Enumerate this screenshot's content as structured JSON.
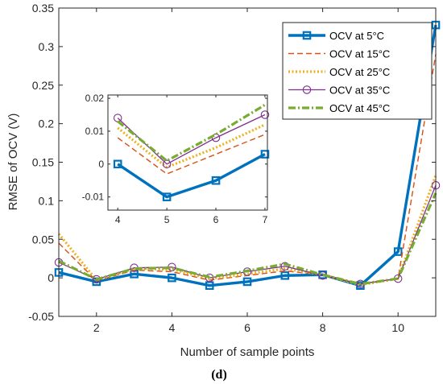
{
  "caption": "(d)",
  "chart_data": {
    "type": "line",
    "xlabel": "Number of sample points",
    "ylabel": "RMSE of OCV (V)",
    "xlim": [
      1,
      11
    ],
    "ylim": [
      -0.05,
      0.35
    ],
    "xticks": [
      2,
      4,
      6,
      8,
      10
    ],
    "yticks": [
      -0.05,
      0,
      0.05,
      0.1,
      0.15,
      0.2,
      0.25,
      0.3,
      0.35
    ],
    "ytick_labels": [
      "-0.05",
      "0",
      "0.05",
      "0.1",
      "0.15",
      "0.2",
      "0.25",
      "0.3",
      "0.35"
    ],
    "grid": false,
    "legend_position": "top-right",
    "x": [
      1,
      2,
      3,
      4,
      5,
      6,
      7,
      8,
      9,
      10,
      11
    ],
    "series": [
      {
        "name": "OCV at 5°C",
        "color": "#0072BD",
        "style": "solid-square",
        "values": [
          0.007,
          -0.005,
          0.005,
          0.0,
          -0.01,
          -0.005,
          0.003,
          0.004,
          -0.01,
          0.034,
          0.328
        ]
      },
      {
        "name": "OCV at 15°C",
        "color": "#D95319",
        "style": "dashed",
        "values": [
          0.045,
          -0.004,
          0.01,
          0.008,
          -0.003,
          0.003,
          0.009,
          0.004,
          -0.008,
          -0.001,
          0.29
        ]
      },
      {
        "name": "OCV at 25°C",
        "color": "#EDB120",
        "style": "dotted",
        "values": [
          0.057,
          -0.003,
          0.012,
          0.011,
          -0.001,
          0.005,
          0.012,
          0.004,
          -0.009,
          -0.001,
          0.133
        ]
      },
      {
        "name": "OCV at 35°C",
        "color": "#7E2F8E",
        "style": "solid-circle",
        "values": [
          0.02,
          -0.002,
          0.013,
          0.014,
          0.0,
          0.008,
          0.015,
          0.003,
          -0.008,
          -0.001,
          0.12
        ]
      },
      {
        "name": "OCV at 45°C",
        "color": "#77AC30",
        "style": "dashdot",
        "values": [
          0.022,
          -0.002,
          0.012,
          0.013,
          0.001,
          0.009,
          0.018,
          0.004,
          -0.008,
          -0.001,
          0.11
        ]
      }
    ],
    "inset": {
      "xlim": [
        3.8,
        7.05
      ],
      "ylim": [
        -0.014,
        0.021
      ],
      "xticks": [
        4,
        5,
        6,
        7
      ],
      "yticks": [
        -0.01,
        0,
        0.01,
        0.02
      ],
      "ytick_labels": [
        "-0.01",
        "0",
        "0.01",
        "0.02"
      ],
      "x": [
        4,
        5,
        6,
        7
      ]
    }
  }
}
